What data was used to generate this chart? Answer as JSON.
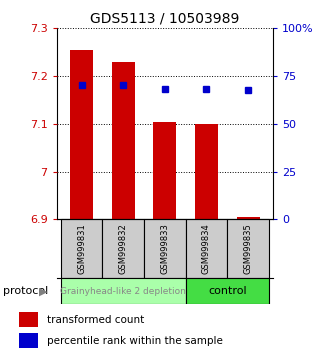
{
  "title": "GDS5113 / 10503989",
  "samples": [
    "GSM999831",
    "GSM999832",
    "GSM999833",
    "GSM999834",
    "GSM999835"
  ],
  "bar_bottoms": [
    6.9,
    6.9,
    6.9,
    6.9,
    6.9
  ],
  "bar_tops": [
    7.255,
    7.23,
    7.105,
    7.1,
    6.905
  ],
  "percentile_values": [
    70.5,
    70.5,
    68.5,
    68.5,
    67.5
  ],
  "ylim": [
    6.9,
    7.3
  ],
  "yticks": [
    6.9,
    7.0,
    7.1,
    7.2,
    7.3
  ],
  "ytick_labels": [
    "6.9",
    "7",
    "7.1",
    "7.2",
    "7.3"
  ],
  "right_yticks": [
    0,
    25,
    50,
    75,
    100
  ],
  "right_ytick_labels": [
    "0",
    "25",
    "50",
    "75",
    "100%"
  ],
  "bar_color": "#cc0000",
  "dot_color": "#0000cc",
  "group1_label": "Grainyhead-like 2 depletion",
  "group2_label": "control",
  "group1_color": "#aaffaa",
  "group2_color": "#44dd44",
  "group1_text_color": "#888888",
  "group2_text_color": "#000000",
  "group_label": "protocol",
  "legend_bar_label": "transformed count",
  "legend_dot_label": "percentile rank within the sample",
  "background_color": "#ffffff",
  "plot_bg": "#ffffff",
  "bar_width": 0.55,
  "sample_box_color": "#cccccc"
}
